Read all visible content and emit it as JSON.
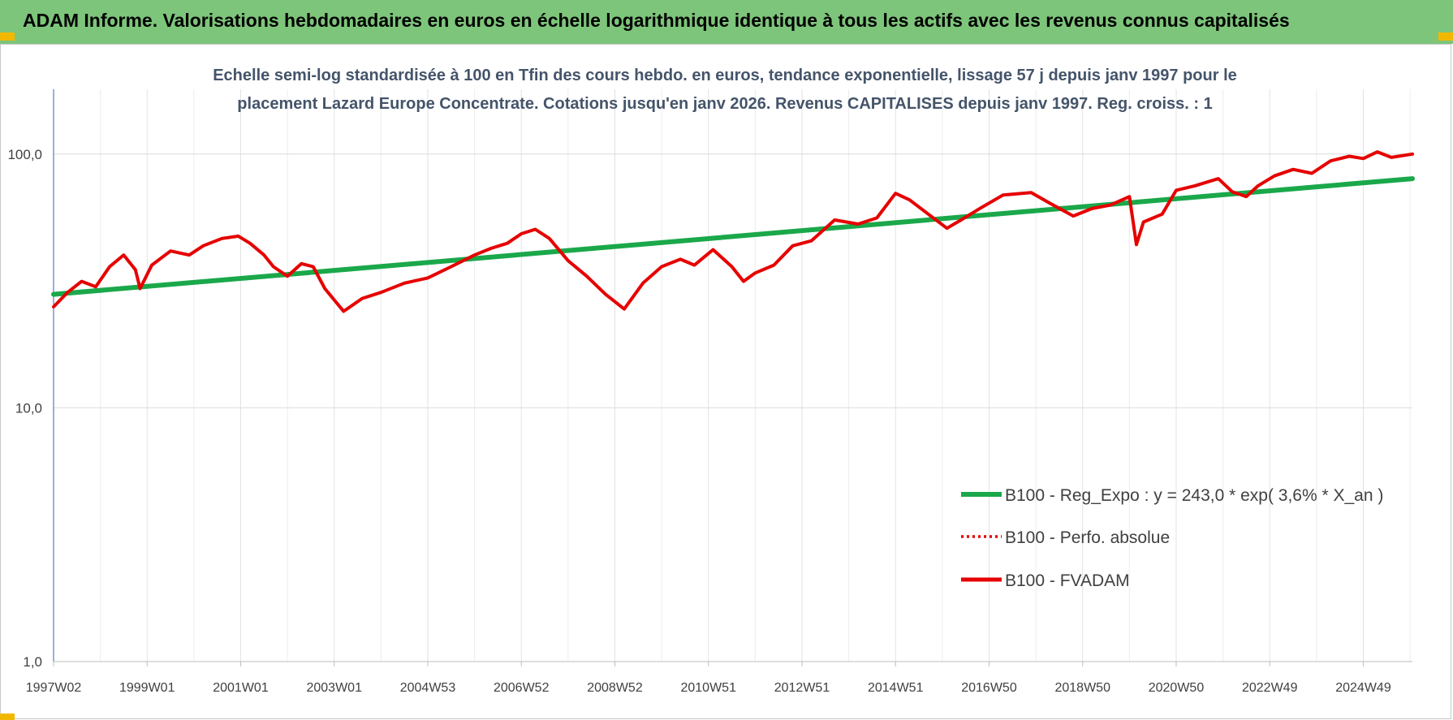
{
  "header": {
    "title": "ADAM Informe. Valorisations hebdomadaires en euros en échelle logarithmique identique à tous les actifs avec les revenus connus capitalisés"
  },
  "colors": {
    "banner": "#7dc57a",
    "trend": "#1aa84a",
    "series": "#e60000",
    "corner": "#f2b800"
  },
  "chart_data": {
    "type": "line",
    "title_lines": [
      "Echelle semi-log standardisée à 100 en Tfin des cours hebdo. en euros, tendance exponentielle, lissage 57 j depuis janv 1997 pour le",
      "placement Lazard Europe Concentrate. Cotations jusqu'en janv 2026. Revenus CAPITALISES depuis janv 1997. Reg. croiss. : 1"
    ],
    "y_scale": "log",
    "ylim": [
      1,
      180
    ],
    "y_ticks": [
      {
        "value": 1,
        "label": "1,0"
      },
      {
        "value": 10,
        "label": "10,0"
      },
      {
        "value": 100,
        "label": "100,0"
      }
    ],
    "xlim": [
      1997.0,
      2026.05
    ],
    "x_ticks": [
      {
        "value": 1997.0,
        "label": "1997W02"
      },
      {
        "value": 1999.0,
        "label": "1999W01"
      },
      {
        "value": 2001.0,
        "label": "2001W01"
      },
      {
        "value": 2003.0,
        "label": "2003W01"
      },
      {
        "value": 2005.0,
        "label": "2004W53"
      },
      {
        "value": 2007.0,
        "label": "2006W52"
      },
      {
        "value": 2009.0,
        "label": "2008W52"
      },
      {
        "value": 2011.0,
        "label": "2010W51"
      },
      {
        "value": 2013.0,
        "label": "2012W51"
      },
      {
        "value": 2015.0,
        "label": "2014W51"
      },
      {
        "value": 2017.0,
        "label": "2016W50"
      },
      {
        "value": 2019.0,
        "label": "2018W50"
      },
      {
        "value": 2021.0,
        "label": "2020W50"
      },
      {
        "value": 2023.0,
        "label": "2022W49"
      },
      {
        "value": 2025.0,
        "label": "2024W49"
      }
    ],
    "grid": {
      "vertical": true,
      "horizontal": true
    },
    "legend_position": "bottom-right",
    "series": [
      {
        "name": "B100 - Reg_Expo : y = 243,0 * exp( 3,6% *  X_an )",
        "style": "solid-thick",
        "color": "#1aa84a",
        "x": [
          1997.0,
          2026.05
        ],
        "y": [
          28.0,
          80.0
        ]
      },
      {
        "name": "B100 - Perfo. absolue",
        "style": "dotted",
        "color": "#e60000",
        "x": [],
        "y": []
      },
      {
        "name": "B100 - FVADAM",
        "style": "solid",
        "color": "#e60000",
        "x": [
          1997.0,
          1997.3,
          1997.6,
          1997.9,
          1998.2,
          1998.5,
          1998.75,
          1998.85,
          1999.1,
          1999.5,
          1999.9,
          2000.2,
          2000.6,
          2000.95,
          2001.2,
          2001.5,
          2001.7,
          2002.0,
          2002.3,
          2002.55,
          2002.8,
          2003.2,
          2003.6,
          2004.0,
          2004.5,
          2005.0,
          2005.5,
          2006.0,
          2006.35,
          2006.7,
          2007.0,
          2007.3,
          2007.6,
          2008.0,
          2008.4,
          2008.8,
          2009.2,
          2009.6,
          2010.0,
          2010.4,
          2010.7,
          2011.1,
          2011.5,
          2011.75,
          2012.0,
          2012.4,
          2012.8,
          2013.2,
          2013.7,
          2014.2,
          2014.6,
          2015.0,
          2015.3,
          2015.7,
          2016.1,
          2016.4,
          2016.8,
          2017.3,
          2017.9,
          2018.3,
          2018.8,
          2019.2,
          2019.6,
          2020.0,
          2020.15,
          2020.3,
          2020.7,
          2021.0,
          2021.4,
          2021.9,
          2022.2,
          2022.5,
          2022.75,
          2023.1,
          2023.5,
          2023.9,
          2024.3,
          2024.7,
          2025.0,
          2025.3,
          2025.6,
          2026.05
        ],
        "y": [
          25.0,
          28.5,
          31.5,
          30.0,
          36.0,
          40.0,
          35.0,
          29.5,
          36.5,
          41.5,
          40.0,
          43.5,
          46.5,
          47.5,
          44.5,
          40.0,
          36.0,
          33.0,
          37.0,
          36.0,
          29.5,
          24.0,
          27.0,
          28.5,
          31.0,
          32.5,
          36.0,
          40.0,
          42.5,
          44.5,
          48.5,
          50.5,
          46.5,
          38.0,
          33.0,
          28.0,
          24.5,
          31.0,
          36.0,
          38.5,
          36.5,
          42.0,
          36.0,
          31.5,
          34.0,
          36.5,
          43.5,
          45.5,
          55.0,
          53.0,
          56.0,
          70.0,
          66.0,
          58.0,
          51.0,
          55.0,
          61.0,
          69.0,
          70.5,
          64.0,
          57.0,
          61.0,
          63.0,
          68.0,
          44.0,
          54.0,
          58.0,
          72.0,
          75.0,
          80.0,
          71.0,
          68.0,
          75.0,
          82.0,
          87.0,
          84.0,
          94.0,
          98.0,
          96.0,
          102.0,
          97.0,
          100.0
        ]
      }
    ]
  }
}
